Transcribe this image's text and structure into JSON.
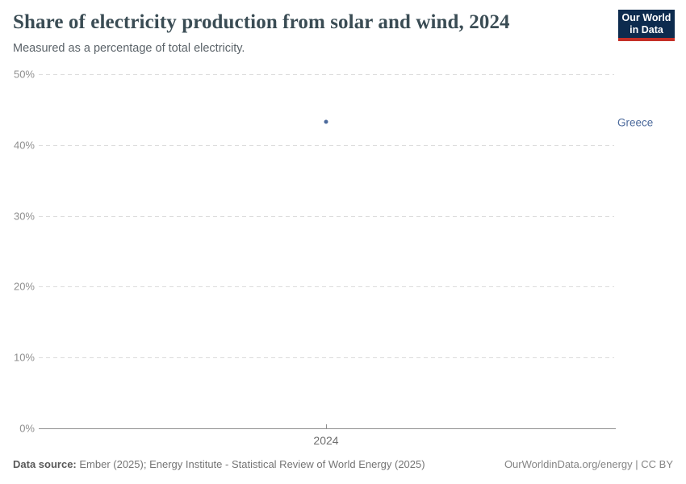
{
  "header": {
    "title": "Share of electricity production from solar and wind, 2024",
    "subtitle": "Measured as a percentage of total electricity.",
    "logo": {
      "line1": "Our World",
      "line2": "in Data",
      "bg_color": "#0d2b4e",
      "accent_color": "#c42f27"
    }
  },
  "chart": {
    "y_ticks": [
      "50%",
      "40%",
      "30%",
      "20%",
      "10%",
      "0%"
    ],
    "x_tick_label": "2024",
    "point": {
      "entity": "Greece",
      "value_pct": 43.3,
      "color": "#4c6a9c"
    }
  },
  "chart_data": {
    "type": "scatter",
    "title": "Share of electricity production from solar and wind, 2024",
    "subtitle": "Measured as a percentage of total electricity.",
    "x": [
      "2024"
    ],
    "series": [
      {
        "name": "Greece",
        "values": [
          43.3
        ]
      }
    ],
    "ylabel": "",
    "y_tick_labels": [
      "0%",
      "10%",
      "20%",
      "30%",
      "40%",
      "50%"
    ],
    "ylim": [
      0,
      50
    ],
    "grid": true,
    "gridline_style": "dashed",
    "legend_position": "right-of-point",
    "point_color": "#4c6a9c"
  },
  "footer": {
    "source_label": "Data source:",
    "source_text": " Ember (2025); Energy Institute - Statistical Review of World Energy (2025)",
    "credit": "OurWorldinData.org/energy | CC BY"
  }
}
